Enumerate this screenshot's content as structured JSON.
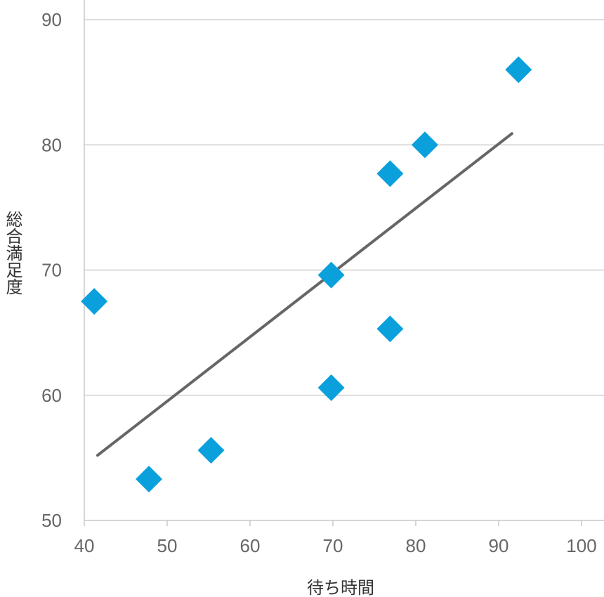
{
  "chart_data": {
    "type": "scatter",
    "xlabel": "待ち時間",
    "ylabel": "総合満足度",
    "xlim": [
      40,
      100
    ],
    "ylim": [
      50,
      90
    ],
    "xticks": [
      "40",
      "50",
      "60",
      "70",
      "80",
      "90",
      "100"
    ],
    "yticks": [
      "50",
      "60",
      "70",
      "80",
      "90"
    ],
    "grid": "horizontal",
    "legend": "none",
    "series": [
      {
        "marker": "diamond",
        "color": "#0aa0dc",
        "points": [
          {
            "x": 41.2,
            "y": 67.5
          },
          {
            "x": 47.8,
            "y": 53.3
          },
          {
            "x": 55.3,
            "y": 55.6
          },
          {
            "x": 69.8,
            "y": 69.6
          },
          {
            "x": 69.8,
            "y": 60.6
          },
          {
            "x": 76.9,
            "y": 77.7
          },
          {
            "x": 76.9,
            "y": 65.3
          },
          {
            "x": 81.1,
            "y": 80.0
          },
          {
            "x": 92.4,
            "y": 86.0
          }
        ]
      }
    ],
    "trendline": {
      "type": "linear",
      "color": "#666666",
      "x": [
        41.6,
        91.6
      ],
      "y": [
        55.2,
        80.9
      ]
    }
  }
}
